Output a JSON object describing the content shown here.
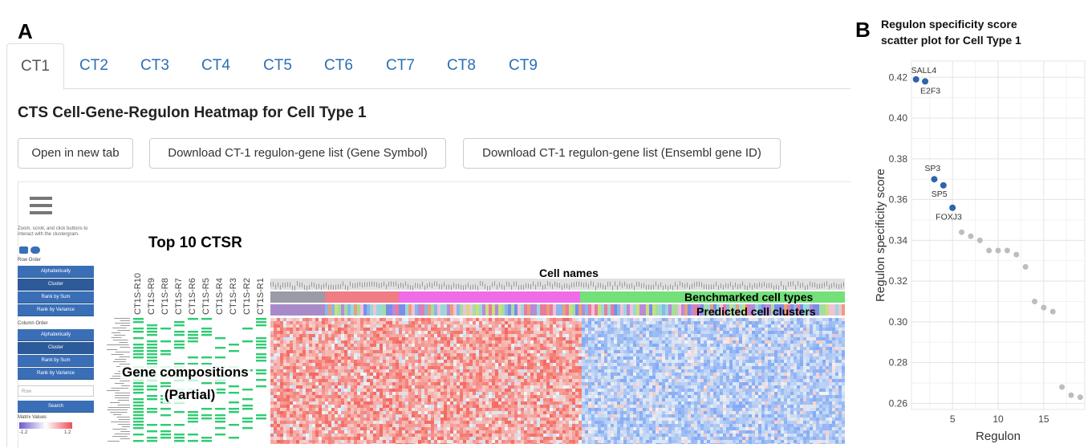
{
  "panel_a_letter": "A",
  "panel_b_letter": "B",
  "tabs": [
    {
      "label": "CT1",
      "active": true
    },
    {
      "label": "CT2",
      "active": false
    },
    {
      "label": "CT3",
      "active": false
    },
    {
      "label": "CT4",
      "active": false
    },
    {
      "label": "CT5",
      "active": false
    },
    {
      "label": "CT6",
      "active": false
    },
    {
      "label": "CT7",
      "active": false
    },
    {
      "label": "CT8",
      "active": false
    },
    {
      "label": "CT9",
      "active": false
    }
  ],
  "heading": "CTS Cell-Gene-Regulon Heatmap for Cell Type 1",
  "buttons": {
    "open_new_tab": "Open in new tab",
    "download_symbol": "Download CT-1 regulon-gene list (Gene Symbol)",
    "download_ensembl": "Download CT-1 regulon-gene list (Ensembl gene ID)"
  },
  "clustergram": {
    "help_text": "Zoom, scroll, and click buttons to interact with the clustergram.",
    "row_order_label": "Row Order",
    "column_order_label": "Column Order",
    "order_buttons": [
      "Alphabetically",
      "Cluster",
      "Rank by Sum",
      "Rank by Variance"
    ],
    "row_search_placeholder": "Row",
    "search_button": "Search",
    "matrix_values_label": "Matrix Values",
    "matrix_min": "-1.2",
    "matrix_max": "1.2",
    "regulon_labels": [
      "CT1S-R10",
      "CT1S-R9",
      "CT1S-R8",
      "CT1S-R7",
      "CT1S-R6",
      "CT1S-R5",
      "CT1S-R4",
      "CT1S-R3",
      "CT1S-R2",
      "CT1S-R1"
    ]
  },
  "annotations": {
    "top_ctsr": "Top 10 CTSR",
    "cell_names": "Cell names",
    "benchmarked": "Benchmarked cell types",
    "predicted": "Predicted cell clusters",
    "gene_compositions": "Gene compositions",
    "partial": "(Partial)"
  },
  "colors": {
    "tab_link": "#2a6fb5",
    "sidebar_button": "#3a6fb7",
    "heat_red": "#e8494f",
    "heat_blue": "#6f9be0",
    "gene_green": "#2ecc71",
    "point_blue": "#2f63ad",
    "point_grey": "#bdbdbd"
  },
  "chart_data": {
    "type": "scatter",
    "title": "Regulon specificity score scatter plot for Cell Type 1",
    "title_lines": [
      "Regulon specificity score",
      "scatter plot for Cell Type 1"
    ],
    "xlabel": "Regulon",
    "ylabel": "Regulon specificity score",
    "xlim": [
      0.5,
      19.5
    ],
    "ylim": [
      0.257,
      0.428
    ],
    "xticks": [
      5,
      10,
      15
    ],
    "yticks": [
      0.26,
      0.28,
      0.3,
      0.32,
      0.34,
      0.36,
      0.38,
      0.4,
      0.42
    ],
    "ytick_labels": [
      "0.26",
      "0.28",
      "0.30",
      "0.32",
      "0.34",
      "0.36",
      "0.38",
      "0.40",
      "0.42"
    ],
    "grid": true,
    "points": [
      {
        "x": 1,
        "y": 0.419,
        "label": "SALL4",
        "highlight": true
      },
      {
        "x": 2,
        "y": 0.418,
        "label": "E2F3",
        "highlight": true
      },
      {
        "x": 3,
        "y": 0.37,
        "label": "SP3",
        "highlight": true
      },
      {
        "x": 4,
        "y": 0.367,
        "label": "SP5",
        "highlight": true
      },
      {
        "x": 5,
        "y": 0.356,
        "label": "FOXJ3",
        "highlight": true
      },
      {
        "x": 6,
        "y": 0.344,
        "label": "",
        "highlight": false
      },
      {
        "x": 7,
        "y": 0.342,
        "label": "",
        "highlight": false
      },
      {
        "x": 8,
        "y": 0.34,
        "label": "",
        "highlight": false
      },
      {
        "x": 9,
        "y": 0.335,
        "label": "",
        "highlight": false
      },
      {
        "x": 10,
        "y": 0.335,
        "label": "",
        "highlight": false
      },
      {
        "x": 11,
        "y": 0.335,
        "label": "",
        "highlight": false
      },
      {
        "x": 12,
        "y": 0.333,
        "label": "",
        "highlight": false
      },
      {
        "x": 13,
        "y": 0.327,
        "label": "",
        "highlight": false
      },
      {
        "x": 14,
        "y": 0.31,
        "label": "",
        "highlight": false
      },
      {
        "x": 15,
        "y": 0.307,
        "label": "",
        "highlight": false
      },
      {
        "x": 16,
        "y": 0.305,
        "label": "",
        "highlight": false
      },
      {
        "x": 17,
        "y": 0.268,
        "label": "",
        "highlight": false
      },
      {
        "x": 18,
        "y": 0.264,
        "label": "",
        "highlight": false
      },
      {
        "x": 19,
        "y": 0.263,
        "label": "",
        "highlight": false
      }
    ]
  }
}
